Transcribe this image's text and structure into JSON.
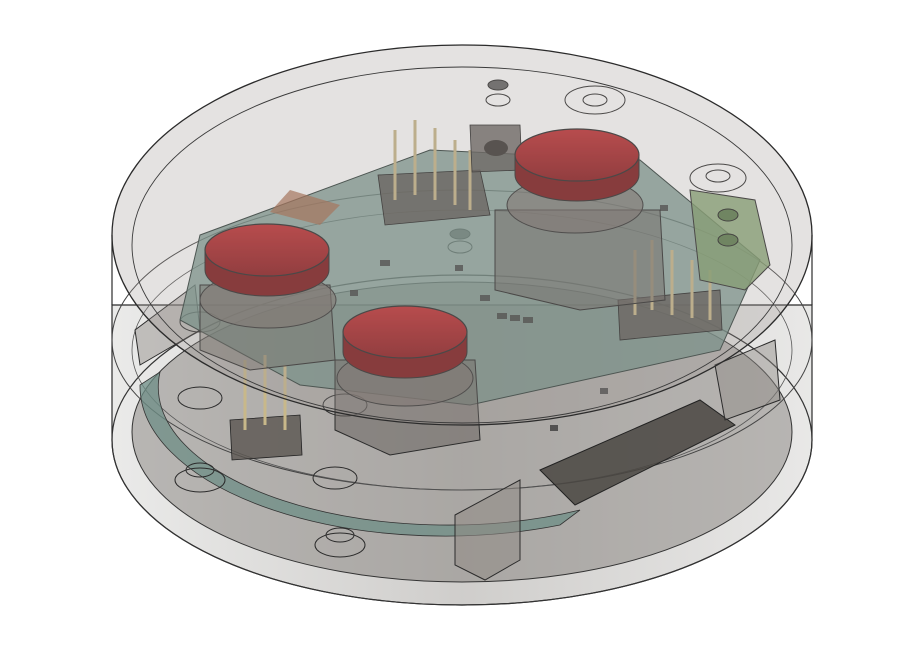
{
  "view": {
    "background": "#ffffff"
  },
  "model": {
    "enclosure": {
      "shape": "cylindrical-housing",
      "material": "translucent-gray",
      "shell_color": "#8a8580",
      "edge_color": "#2b2b2b"
    },
    "pcb": {
      "color": "#6f8f86"
    },
    "buttons": {
      "count": 3,
      "cap_color": "#b5262a",
      "cap_highlight": "#d0393b"
    },
    "pin_headers": {
      "color": "#c8b88a"
    },
    "terminal_block": {
      "color": "#7fa06a"
    }
  }
}
